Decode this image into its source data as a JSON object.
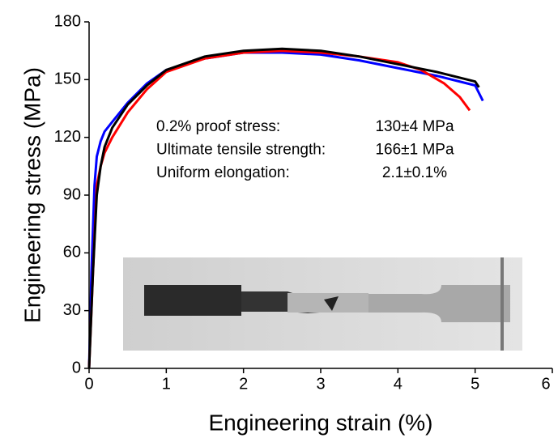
{
  "chart_data": {
    "type": "line",
    "xlabel": "Engineering strain (%)",
    "ylabel": "Engineering stress (MPa)",
    "xlim": [
      0,
      6
    ],
    "xticks": [
      0,
      1,
      2,
      3,
      4,
      5,
      6
    ],
    "ylim": [
      0,
      180
    ],
    "yticks": [
      0,
      30,
      60,
      90,
      120,
      150,
      180
    ],
    "annotations": [
      {
        "label": "0.2% proof stress:",
        "value": "130±4 MPa"
      },
      {
        "label": "Ultimate tensile strength:",
        "value": "166±1 MPa"
      },
      {
        "label": "Uniform elongation:",
        "value": "2.1±0.1%"
      }
    ],
    "series": [
      {
        "color": "#0000ff",
        "x": [
          0,
          0.03,
          0.07,
          0.1,
          0.15,
          0.2,
          0.3,
          0.5,
          0.75,
          1,
          1.5,
          2,
          2.5,
          3,
          3.5,
          4,
          4.5,
          5,
          5.1
        ],
        "values": [
          0,
          50,
          95,
          110,
          118,
          123,
          128,
          138,
          148,
          155,
          161,
          164,
          164,
          163,
          160,
          156,
          152,
          147,
          139
        ]
      },
      {
        "color": "#ff0000",
        "x": [
          0,
          0.05,
          0.1,
          0.15,
          0.2,
          0.3,
          0.5,
          0.75,
          1,
          1.5,
          2,
          2.5,
          3,
          3.5,
          4,
          4.3,
          4.6,
          4.8,
          4.93
        ],
        "values": [
          0,
          50,
          95,
          105,
          112,
          120,
          133,
          145,
          154,
          161,
          164,
          165,
          164,
          162,
          159,
          155,
          148,
          141,
          134
        ]
      },
      {
        "color": "#000000",
        "x": [
          0,
          0.05,
          0.1,
          0.15,
          0.2,
          0.3,
          0.5,
          0.75,
          1,
          1.5,
          2,
          2.5,
          3,
          3.5,
          4,
          4.5,
          5,
          5.05
        ],
        "values": [
          0,
          50,
          90,
          105,
          115,
          125,
          137,
          147,
          155,
          162,
          165,
          166,
          165,
          162,
          158,
          154,
          149,
          146
        ]
      }
    ]
  }
}
